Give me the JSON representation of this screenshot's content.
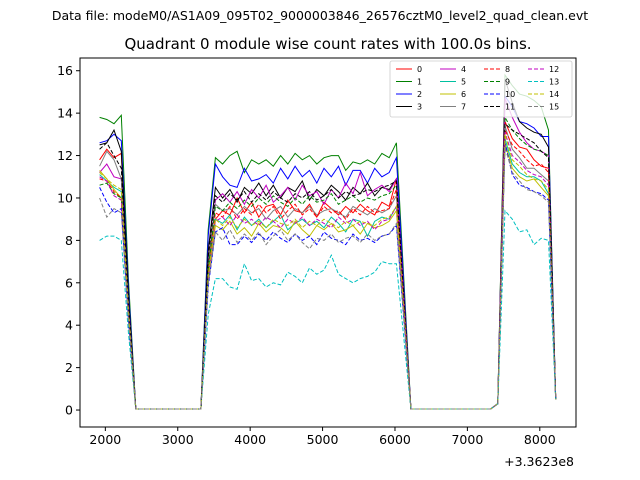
{
  "supertitle": "Data file: modeM0/AS1A09_095T02_9000003846_26576cztM0_level2_quad_clean.evt",
  "chart_data": {
    "type": "line",
    "title": "Quadrant 0 module wise count rates with 100.0s bins.",
    "xlabel": "",
    "ylabel": "",
    "x_offset_label": "+3.3623e8",
    "xlim": [
      1650,
      8500
    ],
    "ylim": [
      -0.8,
      16.6
    ],
    "xticks": [
      2000,
      3000,
      4000,
      5000,
      6000,
      7000,
      8000
    ],
    "yticks": [
      0,
      2,
      4,
      6,
      8,
      10,
      12,
      14,
      16
    ],
    "legend_position": "top-right",
    "x": [
      1920,
      2020,
      2120,
      2220,
      2320,
      2420,
      3320,
      3420,
      3520,
      3620,
      3720,
      3820,
      3920,
      4020,
      4120,
      4220,
      4320,
      4420,
      4520,
      4620,
      4720,
      4820,
      4920,
      5020,
      5120,
      5220,
      5320,
      5420,
      5520,
      5620,
      5720,
      5820,
      5920,
      6020,
      6220,
      7320,
      7420,
      7520,
      7620,
      7720,
      7820,
      7920,
      8020,
      8120,
      8220
    ],
    "series": [
      {
        "name": "0",
        "color": "#ff0000",
        "dash": "solid",
        "values": [
          11.8,
          12.3,
          11.9,
          12.1,
          5.0,
          0.05,
          0.05,
          6.8,
          9.0,
          9.4,
          9.2,
          10.0,
          9.3,
          9.8,
          9.1,
          9.6,
          9.7,
          9.2,
          9.9,
          9.4,
          9.3,
          9.7,
          9.1,
          9.8,
          9.5,
          9.2,
          9.6,
          9.3,
          9.7,
          9.4,
          9.2,
          9.8,
          9.6,
          10.9,
          0.05,
          0.05,
          0.3,
          13.6,
          12.8,
          12.4,
          12.3,
          11.8,
          11.5,
          11.4,
          0.6
        ]
      },
      {
        "name": "1",
        "color": "#008000",
        "dash": "solid",
        "values": [
          13.8,
          13.7,
          13.5,
          13.9,
          6.1,
          0.05,
          0.05,
          8.5,
          11.9,
          11.6,
          12.0,
          12.2,
          11.2,
          11.8,
          11.6,
          11.8,
          11.5,
          12.0,
          11.6,
          12.1,
          11.8,
          12.0,
          11.6,
          11.9,
          12.0,
          12.0,
          11.3,
          11.7,
          11.6,
          11.8,
          11.6,
          12.1,
          11.9,
          12.6,
          0.05,
          0.05,
          0.3,
          15.8,
          15.3,
          14.9,
          14.8,
          14.6,
          14.3,
          13.2,
          0.5
        ]
      },
      {
        "name": "2",
        "color": "#0000ff",
        "dash": "solid",
        "values": [
          12.6,
          12.7,
          13.0,
          12.7,
          5.7,
          0.05,
          0.05,
          8.2,
          11.6,
          11.0,
          10.6,
          10.5,
          11.4,
          10.8,
          10.9,
          11.1,
          10.7,
          11.4,
          10.9,
          11.5,
          11.0,
          11.3,
          10.7,
          11.4,
          11.0,
          11.5,
          10.6,
          11.3,
          11.3,
          10.7,
          11.4,
          11.0,
          11.2,
          11.9,
          0.05,
          0.05,
          0.3,
          14.8,
          14.3,
          13.6,
          13.5,
          13.3,
          12.9,
          12.9,
          0.5
        ]
      },
      {
        "name": "3",
        "color": "#000000",
        "dash": "solid",
        "values": [
          12.5,
          12.6,
          13.2,
          12.2,
          5.3,
          0.05,
          0.05,
          7.5,
          10.5,
          10.0,
          10.4,
          9.8,
          10.5,
          10.2,
          10.7,
          10.1,
          10.6,
          10.0,
          10.5,
          10.3,
          10.8,
          9.9,
          10.4,
          10.1,
          10.6,
          10.3,
          9.9,
          10.5,
          10.2,
          10.7,
          10.1,
          10.5,
          10.4,
          10.9,
          0.05,
          0.05,
          0.3,
          15.6,
          14.5,
          13.6,
          13.3,
          13.1,
          13.0,
          12.4,
          0.5
        ]
      },
      {
        "name": "4",
        "color": "#c000c0",
        "dash": "solid",
        "values": [
          11.2,
          11.6,
          11.0,
          10.9,
          4.9,
          0.05,
          0.05,
          6.9,
          9.9,
          10.2,
          9.8,
          10.3,
          9.7,
          10.4,
          10.0,
          10.6,
          9.8,
          10.1,
          10.5,
          9.9,
          10.6,
          10.1,
          10.3,
          9.7,
          10.4,
          10.0,
          10.7,
          10.2,
          11.2,
          10.1,
          10.4,
          10.6,
          10.3,
          10.9,
          0.05,
          0.05,
          0.3,
          14.7,
          13.8,
          13.1,
          12.6,
          12.3,
          12.2,
          12.0,
          0.5
        ]
      },
      {
        "name": "5",
        "color": "#00c0a0",
        "dash": "solid",
        "values": [
          11.1,
          10.8,
          10.5,
          10.3,
          4.6,
          0.05,
          0.05,
          6.4,
          9.0,
          8.8,
          9.2,
          8.5,
          9.1,
          8.7,
          9.0,
          8.6,
          8.9,
          9.2,
          8.5,
          8.8,
          9.0,
          8.7,
          8.9,
          8.6,
          9.1,
          8.8,
          8.4,
          9.0,
          8.9,
          8.2,
          8.9,
          9.1,
          9.0,
          9.6,
          0.05,
          0.05,
          0.3,
          12.8,
          11.6,
          11.2,
          11.0,
          11.0,
          10.8,
          10.2,
          0.5
        ]
      },
      {
        "name": "6",
        "color": "#c0c000",
        "dash": "solid",
        "values": [
          11.3,
          10.9,
          10.4,
          10.0,
          4.5,
          0.05,
          0.05,
          6.2,
          8.7,
          8.5,
          8.9,
          8.3,
          8.6,
          8.2,
          8.8,
          8.4,
          8.7,
          8.6,
          8.3,
          8.9,
          8.5,
          8.2,
          8.7,
          8.5,
          8.8,
          8.4,
          8.5,
          8.7,
          8.3,
          8.8,
          8.6,
          8.7,
          8.9,
          9.4,
          0.05,
          0.05,
          0.3,
          12.6,
          11.4,
          11.0,
          10.8,
          10.9,
          10.5,
          10.1,
          0.5
        ]
      },
      {
        "name": "7",
        "color": "#808080",
        "dash": "solid",
        "values": [
          11.5,
          12.2,
          11.8,
          10.9,
          4.8,
          0.05,
          0.05,
          6.8,
          9.7,
          9.4,
          9.5,
          9.2,
          9.6,
          9.3,
          9.5,
          9.0,
          9.4,
          9.6,
          9.1,
          9.5,
          9.3,
          9.6,
          9.2,
          9.4,
          9.5,
          9.3,
          9.1,
          9.6,
          9.4,
          9.2,
          9.5,
          9.3,
          9.5,
          10.1,
          0.05,
          0.05,
          0.3,
          13.4,
          12.3,
          11.9,
          11.4,
          11.4,
          11.1,
          10.8,
          0.5
        ]
      },
      {
        "name": "8",
        "color": "#ff0000",
        "dash": "dashed",
        "values": [
          10.9,
          10.8,
          10.3,
          10.0,
          4.5,
          0.05,
          0.05,
          6.5,
          9.3,
          9.1,
          9.6,
          9.0,
          9.5,
          9.2,
          9.7,
          9.3,
          9.6,
          9.0,
          9.4,
          9.7,
          9.2,
          9.5,
          9.1,
          9.6,
          9.3,
          9.4,
          9.0,
          9.5,
          9.2,
          9.6,
          9.3,
          9.4,
          9.5,
          10.4,
          0.05,
          0.05,
          0.3,
          13.2,
          12.5,
          12.2,
          11.8,
          11.5,
          11.6,
          11.2,
          0.5
        ]
      },
      {
        "name": "9",
        "color": "#008000",
        "dash": "dashed",
        "values": [
          10.6,
          10.7,
          10.2,
          10.0,
          4.5,
          0.05,
          0.05,
          6.6,
          9.6,
          9.4,
          9.8,
          9.5,
          9.9,
          9.6,
          10.0,
          9.7,
          10.1,
          9.8,
          9.6,
          10.0,
          9.7,
          10.1,
          9.8,
          9.9,
          10.2,
          9.7,
          9.9,
          10.1,
          9.8,
          10.0,
          9.9,
          10.1,
          10.2,
          10.6,
          0.05,
          0.05,
          0.3,
          13.8,
          13.2,
          12.8,
          12.5,
          12.3,
          12.2,
          12.0,
          0.5
        ]
      },
      {
        "name": "10",
        "color": "#0000ff",
        "dash": "dashed",
        "values": [
          10.5,
          9.8,
          9.3,
          9.5,
          4.2,
          0.05,
          0.05,
          5.8,
          8.4,
          8.6,
          7.8,
          7.8,
          8.2,
          7.9,
          8.3,
          8.0,
          8.4,
          8.1,
          7.9,
          8.3,
          8.0,
          8.2,
          7.8,
          8.4,
          8.1,
          8.0,
          7.8,
          8.3,
          8.0,
          8.1,
          7.9,
          8.2,
          8.3,
          8.7,
          0.05,
          0.05,
          0.3,
          12.6,
          11.1,
          10.6,
          10.5,
          10.3,
          10.2,
          9.9,
          0.5
        ]
      },
      {
        "name": "11",
        "color": "#000000",
        "dash": "dashed",
        "values": [
          12.3,
          12.6,
          12.0,
          11.4,
          5.0,
          0.05,
          0.05,
          7.2,
          10.1,
          9.8,
          10.2,
          9.9,
          10.3,
          9.8,
          10.2,
          9.9,
          10.3,
          10.0,
          9.8,
          10.2,
          10.0,
          10.3,
          9.9,
          10.1,
          10.4,
          10.0,
          10.3,
          10.1,
          10.2,
          10.4,
          10.3,
          10.5,
          10.6,
          10.8,
          0.05,
          0.05,
          0.3,
          13.5,
          13.2,
          13.0,
          12.8,
          12.6,
          12.2,
          11.9,
          0.5
        ]
      },
      {
        "name": "12",
        "color": "#c000c0",
        "dash": "dashed",
        "values": [
          11.0,
          10.8,
          10.1,
          9.9,
          4.4,
          0.05,
          0.05,
          6.2,
          8.9,
          9.1,
          8.7,
          9.2,
          8.8,
          9.0,
          8.7,
          9.1,
          8.9,
          8.6,
          9.0,
          8.8,
          9.1,
          8.7,
          9.0,
          8.8,
          8.6,
          9.1,
          8.8,
          9.0,
          8.7,
          8.9,
          8.5,
          8.9,
          9.0,
          9.6,
          0.05,
          0.05,
          0.3,
          13.1,
          12.0,
          11.7,
          11.3,
          11.1,
          11.0,
          10.6,
          0.5
        ]
      },
      {
        "name": "13",
        "color": "#00c0c0",
        "dash": "dashed",
        "values": [
          8.0,
          8.2,
          8.2,
          8.0,
          3.6,
          0.05,
          0.05,
          4.5,
          6.2,
          6.2,
          5.8,
          5.7,
          6.9,
          6.1,
          6.2,
          5.8,
          6.0,
          5.9,
          6.5,
          6.3,
          6.0,
          6.7,
          6.4,
          6.6,
          7.3,
          6.4,
          6.2,
          6.0,
          6.2,
          6.3,
          6.5,
          7.0,
          6.9,
          6.9,
          0.05,
          0.05,
          0.3,
          9.4,
          9.0,
          8.4,
          8.5,
          7.8,
          8.1,
          8.0,
          0.5
        ]
      },
      {
        "name": "14",
        "color": "#c0c000",
        "dash": "dashed",
        "values": [
          11.2,
          10.9,
          10.6,
          10.4,
          4.6,
          0.05,
          0.05,
          6.3,
          9.0,
          8.7,
          9.1,
          8.6,
          9.0,
          8.7,
          8.9,
          8.6,
          9.0,
          8.8,
          8.7,
          9.0,
          8.6,
          8.9,
          8.7,
          9.0,
          8.8,
          8.6,
          8.9,
          8.7,
          8.9,
          8.8,
          8.7,
          9.0,
          9.1,
          9.6,
          0.05,
          0.05,
          0.3,
          13.0,
          11.8,
          11.5,
          11.1,
          10.9,
          10.8,
          10.4,
          0.5
        ]
      },
      {
        "name": "15",
        "color": "#808080",
        "dash": "dashed",
        "values": [
          10.0,
          9.1,
          9.5,
          9.3,
          4.2,
          0.05,
          0.05,
          5.9,
          8.4,
          8.0,
          8.5,
          7.9,
          8.3,
          8.0,
          8.4,
          7.8,
          8.2,
          8.5,
          8.0,
          8.3,
          7.9,
          7.6,
          8.1,
          8.0,
          8.3,
          7.9,
          8.1,
          8.2,
          7.9,
          8.3,
          8.0,
          8.2,
          8.3,
          8.8,
          0.05,
          0.05,
          0.3,
          12.4,
          11.2,
          10.8,
          10.4,
          10.3,
          10.1,
          9.8,
          0.5
        ]
      }
    ]
  }
}
